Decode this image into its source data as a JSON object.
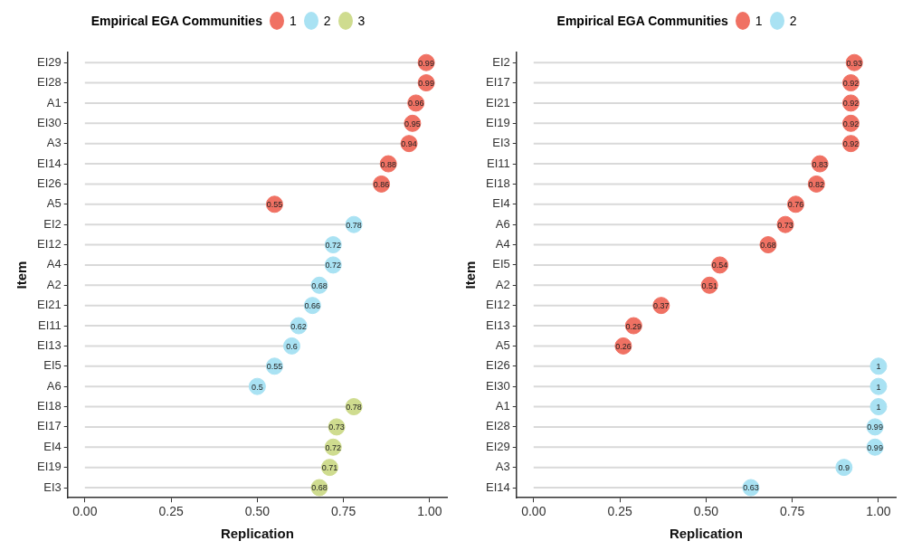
{
  "chart_data": [
    {
      "type": "lollipop",
      "orientation": "horizontal",
      "legend": "top",
      "legend_title": "Empirical EGA Communities",
      "xlabel": "Replication",
      "ylabel": "Item",
      "data_labels": true,
      "categories": [
        "EI29",
        "EI28",
        "A1",
        "EI30",
        "A3",
        "EI14",
        "EI26",
        "A5",
        "EI2",
        "EI12",
        "A4",
        "A2",
        "EI21",
        "EI11",
        "EI13",
        "EI5",
        "A6",
        "EI18",
        "EI17",
        "EI4",
        "EI19",
        "EI3"
      ],
      "series": [
        {
          "name": "1",
          "color": "#f07163",
          "values": [
            0.99,
            0.99,
            0.96,
            0.95,
            0.94,
            0.88,
            0.86,
            0.55,
            null,
            null,
            null,
            null,
            null,
            null,
            null,
            null,
            null,
            null,
            null,
            null,
            null,
            null
          ]
        },
        {
          "name": "2",
          "color": "#a9e2f3",
          "values": [
            null,
            null,
            null,
            null,
            null,
            null,
            null,
            null,
            0.78,
            0.72,
            0.72,
            0.68,
            0.66,
            0.62,
            0.6,
            0.55,
            0.5,
            null,
            null,
            null,
            null,
            null
          ]
        },
        {
          "name": "3",
          "color": "#cfdc8f",
          "values": [
            null,
            null,
            null,
            null,
            null,
            null,
            null,
            null,
            null,
            null,
            null,
            null,
            null,
            null,
            null,
            null,
            null,
            0.78,
            0.73,
            0.72,
            0.71,
            0.68
          ]
        }
      ],
      "xlim": [
        -0.05,
        1.05
      ],
      "xticks": [
        {
          "value": 0,
          "label": "0.00"
        },
        {
          "value": 0.25,
          "label": "0.25"
        },
        {
          "value": 0.5,
          "label": "0.50"
        },
        {
          "value": 0.75,
          "label": "0.75"
        },
        {
          "value": 1,
          "label": "1.00"
        }
      ]
    },
    {
      "type": "lollipop",
      "orientation": "horizontal",
      "legend": "top",
      "legend_title": "Empirical EGA Communities",
      "xlabel": "Replication",
      "ylabel": "Item",
      "data_labels": true,
      "categories": [
        "EI2",
        "EI17",
        "EI21",
        "EI19",
        "EI3",
        "EI11",
        "EI18",
        "EI4",
        "A6",
        "A4",
        "EI5",
        "A2",
        "EI12",
        "EI13",
        "A5",
        "EI26",
        "EI30",
        "A1",
        "EI28",
        "EI29",
        "A3",
        "EI14"
      ],
      "series": [
        {
          "name": "1",
          "color": "#f07163",
          "values": [
            0.93,
            0.92,
            0.92,
            0.92,
            0.92,
            0.83,
            0.82,
            0.76,
            0.73,
            0.68,
            0.54,
            0.51,
            0.37,
            0.29,
            0.26,
            null,
            null,
            null,
            null,
            null,
            null,
            null
          ]
        },
        {
          "name": "2",
          "color": "#a9e2f3",
          "values": [
            null,
            null,
            null,
            null,
            null,
            null,
            null,
            null,
            null,
            null,
            null,
            null,
            null,
            null,
            null,
            1,
            1,
            1,
            0.99,
            0.99,
            0.9,
            0.63
          ]
        }
      ],
      "xlim": [
        -0.05,
        1.05
      ],
      "xticks": [
        {
          "value": 0,
          "label": "0.00"
        },
        {
          "value": 0.25,
          "label": "0.25"
        },
        {
          "value": 0.5,
          "label": "0.50"
        },
        {
          "value": 0.75,
          "label": "0.75"
        },
        {
          "value": 1,
          "label": "1.00"
        }
      ]
    }
  ]
}
